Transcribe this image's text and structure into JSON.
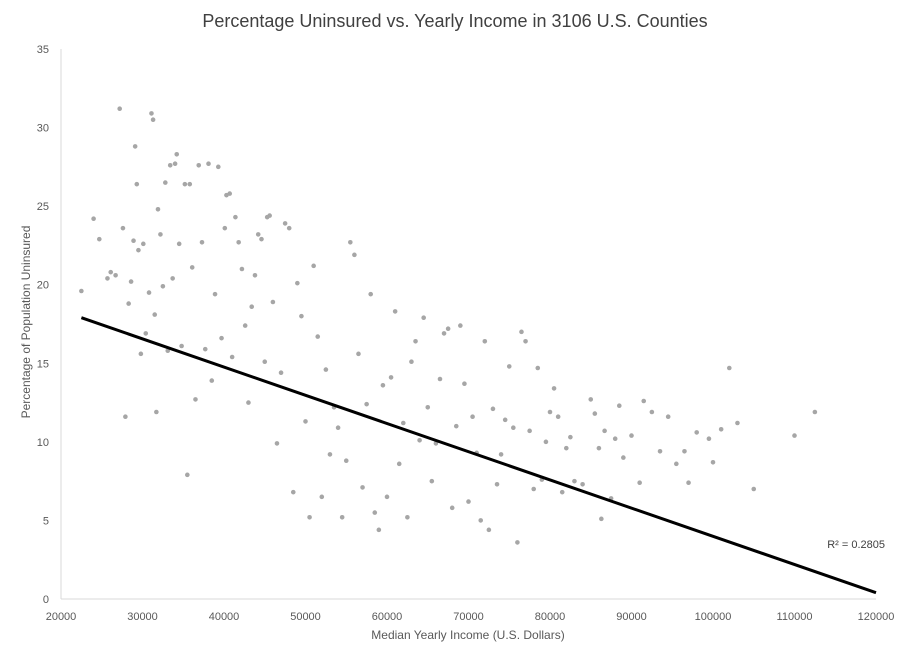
{
  "chart_data": {
    "type": "scatter",
    "title": "Percentage Uninsured vs. Yearly Income in 3106 U.S. Counties",
    "xlabel": "Median Yearly Income (U.S. Dollars)",
    "ylabel": "Percentage of Population Uninsured",
    "xlim": [
      20000,
      120000
    ],
    "ylim": [
      0,
      35
    ],
    "x_ticks": [
      20000,
      30000,
      40000,
      50000,
      60000,
      70000,
      80000,
      90000,
      100000,
      110000,
      120000
    ],
    "y_ticks": [
      0,
      5,
      10,
      15,
      20,
      25,
      30,
      35
    ],
    "grid": false,
    "legend": "none",
    "colors": {
      "points": "#a6a6a6",
      "trendline": "#000000",
      "axis": "#d9d9d9",
      "text": "#595959"
    },
    "trendline": {
      "type": "linear",
      "start": [
        22500,
        17.9
      ],
      "end": [
        120000,
        0.4
      ],
      "r_squared_label": "R² = 0.2805"
    },
    "series": [
      {
        "points": [
          [
            22500,
            19.6
          ],
          [
            24000,
            24.2
          ],
          [
            24700,
            22.9
          ],
          [
            25700,
            20.4
          ],
          [
            26100,
            20.8
          ],
          [
            26700,
            20.6
          ],
          [
            27200,
            31.2
          ],
          [
            27600,
            23.6
          ],
          [
            27900,
            11.6
          ],
          [
            28300,
            18.8
          ],
          [
            28600,
            20.2
          ],
          [
            28900,
            22.8
          ],
          [
            29100,
            28.8
          ],
          [
            29300,
            26.4
          ],
          [
            29500,
            22.2
          ],
          [
            29800,
            15.6
          ],
          [
            30100,
            22.6
          ],
          [
            30400,
            16.9
          ],
          [
            30800,
            19.5
          ],
          [
            31100,
            30.9
          ],
          [
            31300,
            30.5
          ],
          [
            31500,
            18.1
          ],
          [
            31700,
            11.9
          ],
          [
            31900,
            24.8
          ],
          [
            32200,
            23.2
          ],
          [
            32500,
            19.9
          ],
          [
            32800,
            26.5
          ],
          [
            33100,
            15.8
          ],
          [
            33400,
            27.6
          ],
          [
            33700,
            20.4
          ],
          [
            34000,
            27.7
          ],
          [
            34200,
            28.3
          ],
          [
            34500,
            22.6
          ],
          [
            34800,
            16.1
          ],
          [
            35200,
            26.4
          ],
          [
            35500,
            7.9
          ],
          [
            35800,
            26.4
          ],
          [
            36100,
            21.1
          ],
          [
            36500,
            12.7
          ],
          [
            36900,
            27.6
          ],
          [
            37300,
            22.7
          ],
          [
            37700,
            15.9
          ],
          [
            38100,
            27.7
          ],
          [
            38500,
            13.9
          ],
          [
            38900,
            19.4
          ],
          [
            39300,
            27.5
          ],
          [
            39700,
            16.6
          ],
          [
            40100,
            23.6
          ],
          [
            40300,
            25.7
          ],
          [
            40700,
            25.8
          ],
          [
            41000,
            15.4
          ],
          [
            41400,
            24.3
          ],
          [
            41800,
            22.7
          ],
          [
            42200,
            21.0
          ],
          [
            42600,
            17.4
          ],
          [
            43000,
            12.5
          ],
          [
            43400,
            18.6
          ],
          [
            43800,
            20.6
          ],
          [
            44200,
            23.2
          ],
          [
            44600,
            22.9
          ],
          [
            45000,
            15.1
          ],
          [
            45300,
            24.3
          ],
          [
            45600,
            24.4
          ],
          [
            46000,
            18.9
          ],
          [
            46500,
            9.9
          ],
          [
            47000,
            14.4
          ],
          [
            47500,
            23.9
          ],
          [
            48000,
            23.6
          ],
          [
            48500,
            6.8
          ],
          [
            49000,
            20.1
          ],
          [
            49500,
            18.0
          ],
          [
            50000,
            11.3
          ],
          [
            50500,
            5.2
          ],
          [
            51000,
            21.2
          ],
          [
            51500,
            16.7
          ],
          [
            52000,
            6.5
          ],
          [
            52500,
            14.6
          ],
          [
            53000,
            9.2
          ],
          [
            53500,
            12.2
          ],
          [
            54000,
            10.9
          ],
          [
            54500,
            5.2
          ],
          [
            55000,
            8.8
          ],
          [
            55500,
            22.7
          ],
          [
            56000,
            21.9
          ],
          [
            56500,
            15.6
          ],
          [
            57000,
            7.1
          ],
          [
            57500,
            12.4
          ],
          [
            58000,
            19.4
          ],
          [
            58500,
            5.5
          ],
          [
            59000,
            4.4
          ],
          [
            59500,
            13.6
          ],
          [
            60000,
            6.5
          ],
          [
            60500,
            14.1
          ],
          [
            61000,
            18.3
          ],
          [
            61500,
            8.6
          ],
          [
            62000,
            11.2
          ],
          [
            62500,
            5.2
          ],
          [
            63000,
            15.1
          ],
          [
            63500,
            16.4
          ],
          [
            64000,
            10.1
          ],
          [
            64500,
            17.9
          ],
          [
            65000,
            12.2
          ],
          [
            65500,
            7.5
          ],
          [
            66000,
            9.9
          ],
          [
            66500,
            14.0
          ],
          [
            67000,
            16.9
          ],
          [
            67500,
            17.2
          ],
          [
            68000,
            5.8
          ],
          [
            68500,
            11.0
          ],
          [
            69000,
            17.4
          ],
          [
            69500,
            13.7
          ],
          [
            70000,
            6.2
          ],
          [
            70500,
            11.6
          ],
          [
            71000,
            9.3
          ],
          [
            71500,
            5.0
          ],
          [
            72000,
            16.4
          ],
          [
            72500,
            4.4
          ],
          [
            73000,
            12.1
          ],
          [
            73500,
            7.3
          ],
          [
            74000,
            9.2
          ],
          [
            74500,
            11.4
          ],
          [
            75000,
            14.8
          ],
          [
            75500,
            10.9
          ],
          [
            76000,
            3.6
          ],
          [
            76500,
            17.0
          ],
          [
            77000,
            16.4
          ],
          [
            77500,
            10.7
          ],
          [
            78000,
            7.0
          ],
          [
            78500,
            14.7
          ],
          [
            79000,
            7.6
          ],
          [
            79500,
            10.0
          ],
          [
            80000,
            11.9
          ],
          [
            80500,
            13.4
          ],
          [
            81000,
            11.6
          ],
          [
            81500,
            6.8
          ],
          [
            82000,
            9.6
          ],
          [
            82500,
            10.3
          ],
          [
            83000,
            7.5
          ],
          [
            84000,
            7.3
          ],
          [
            85000,
            12.7
          ],
          [
            85500,
            11.8
          ],
          [
            86000,
            9.6
          ],
          [
            86300,
            5.1
          ],
          [
            86700,
            10.7
          ],
          [
            87500,
            6.4
          ],
          [
            88000,
            10.2
          ],
          [
            88500,
            12.3
          ],
          [
            89000,
            9.0
          ],
          [
            90000,
            10.4
          ],
          [
            91000,
            7.4
          ],
          [
            91500,
            12.6
          ],
          [
            92500,
            11.9
          ],
          [
            93500,
            9.4
          ],
          [
            94500,
            11.6
          ],
          [
            95500,
            8.6
          ],
          [
            96500,
            9.4
          ],
          [
            97000,
            7.4
          ],
          [
            98000,
            10.6
          ],
          [
            99500,
            10.2
          ],
          [
            100000,
            8.7
          ],
          [
            101000,
            10.8
          ],
          [
            102000,
            14.7
          ],
          [
            103000,
            11.2
          ],
          [
            105000,
            7.0
          ],
          [
            110000,
            10.4
          ],
          [
            112500,
            11.9
          ]
        ]
      }
    ]
  }
}
